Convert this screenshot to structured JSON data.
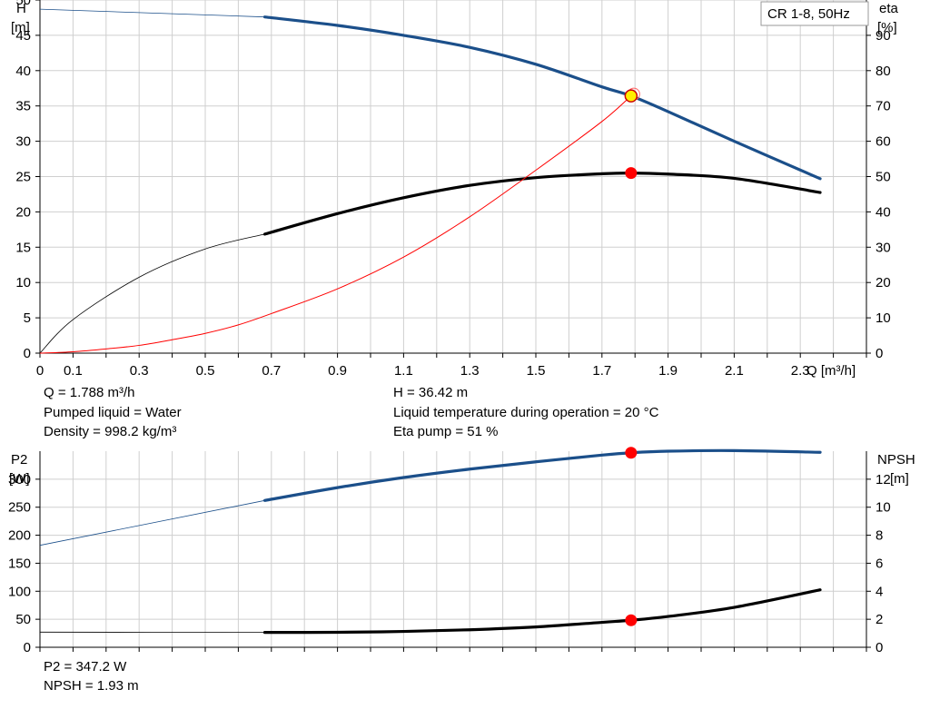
{
  "chart_data": [
    {
      "type": "line",
      "panel": "top",
      "title": "CR 1-8, 50Hz",
      "xlabel": "Q [m³/h]",
      "ylabel_left": [
        "H",
        "[m]"
      ],
      "ylabel_right": [
        "eta",
        "[%]"
      ],
      "xlim": [
        0,
        2.5
      ],
      "ylim_left": [
        0,
        50
      ],
      "ylim_right": [
        0,
        100
      ],
      "x_ticks": [
        "0",
        "0.1",
        "0.3",
        "0.5",
        "0.7",
        "0.9",
        "1.1",
        "1.3",
        "1.5",
        "1.7",
        "1.9",
        "2.1",
        "2.3"
      ],
      "y_ticks_left": [
        "0",
        "5",
        "10",
        "15",
        "20",
        "25",
        "30",
        "35",
        "40",
        "45",
        "50"
      ],
      "y_ticks_right": [
        "0",
        "10",
        "20",
        "30",
        "40",
        "50",
        "60",
        "70",
        "80",
        "90"
      ],
      "grid": true,
      "series": [
        {
          "axis": "left",
          "color": "#1b4f8a",
          "x": [
            0,
            0.68,
            0.9,
            1.1,
            1.3,
            1.5,
            1.7,
            1.788,
            1.9,
            2.1,
            2.36
          ],
          "y": [
            48.7,
            47.6,
            46.4,
            45.0,
            43.3,
            40.9,
            37.7,
            36.42,
            34.2,
            30.0,
            24.7
          ],
          "thin_until": 0.68
        },
        {
          "axis": "right",
          "color": "#000000",
          "x": [
            0,
            0.1,
            0.3,
            0.5,
            0.68,
            0.9,
            1.1,
            1.3,
            1.5,
            1.7,
            1.788,
            1.9,
            2.1,
            2.36
          ],
          "y": [
            0,
            9.5,
            21.5,
            29.5,
            33.7,
            39.5,
            44.0,
            47.5,
            49.7,
            50.8,
            51.0,
            50.7,
            49.5,
            45.5
          ],
          "thin_until": 0.68
        },
        {
          "axis": "left",
          "color": "#ff0000",
          "x": [
            0,
            0.1,
            0.2,
            0.3,
            0.4,
            0.5,
            0.6,
            0.7,
            0.9,
            1.1,
            1.3,
            1.5,
            1.7,
            1.788
          ],
          "y": [
            0,
            0.2,
            0.6,
            1.1,
            1.9,
            2.8,
            4.0,
            5.6,
            9.1,
            13.6,
            19.3,
            25.9,
            32.8,
            36.42
          ],
          "thin_until": 2.5
        }
      ],
      "operating_points": [
        {
          "axis": "left",
          "x": 1.788,
          "y": 36.42,
          "style": "yellow"
        },
        {
          "axis": "right",
          "x": 1.788,
          "y": 51,
          "style": "red"
        }
      ]
    },
    {
      "type": "line",
      "panel": "bottom",
      "ylabel_left": [
        "P2",
        "[W]"
      ],
      "ylabel_right": [
        "NPSH",
        "[m]"
      ],
      "xlim": [
        0,
        2.5
      ],
      "ylim_left": [
        0,
        350
      ],
      "ylim_right": [
        0,
        14
      ],
      "y_ticks_left": [
        "0",
        "50",
        "100",
        "150",
        "200",
        "250",
        "300"
      ],
      "y_ticks_right": [
        "0",
        "2",
        "4",
        "6",
        "8",
        "10",
        "12"
      ],
      "grid": true,
      "series": [
        {
          "axis": "left",
          "color": "#1b4f8a",
          "x": [
            0,
            0.68,
            0.9,
            1.1,
            1.3,
            1.5,
            1.7,
            1.788,
            1.9,
            2.1,
            2.36
          ],
          "y": [
            182,
            262,
            285,
            303,
            318,
            331,
            343,
            347.2,
            350,
            351,
            348
          ],
          "thin_until": 0.68
        },
        {
          "axis": "right",
          "color": "#000000",
          "x": [
            0,
            0.68,
            0.9,
            1.1,
            1.3,
            1.5,
            1.7,
            1.788,
            1.9,
            2.1,
            2.36
          ],
          "y": [
            1.08,
            1.06,
            1.07,
            1.13,
            1.25,
            1.45,
            1.78,
            1.93,
            2.2,
            2.85,
            4.1
          ],
          "thin_until": 0.68
        }
      ],
      "operating_points": [
        {
          "axis": "left",
          "x": 1.788,
          "y": 347.2,
          "style": "red"
        },
        {
          "axis": "right",
          "x": 1.788,
          "y": 1.93,
          "style": "red"
        }
      ]
    }
  ],
  "info": {
    "q": "Q = 1.788 m³/h",
    "liquid": "Pumped liquid = Water",
    "density": "Density = 998.2 kg/m³",
    "h": "H = 36.42 m",
    "temp": "Liquid temperature during operation = 20 °C",
    "eta": "Eta pump = 51 %",
    "p2": "P2 = 347.2 W",
    "npsh": "NPSH = 1.93 m"
  }
}
